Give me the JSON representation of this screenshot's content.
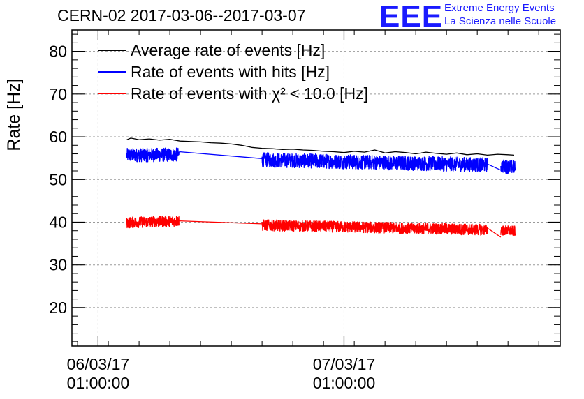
{
  "title": "CERN-02 2017-03-06--2017-03-07",
  "logo": {
    "mark": "EEE",
    "line1": "Extreme Energy Events",
    "line2": "La Scienza nelle Scuole",
    "color": "#1a1aff"
  },
  "chart_data": {
    "type": "line",
    "ylabel": "Rate [Hz]",
    "ylim": [
      11,
      85
    ],
    "yticks": [
      20,
      30,
      40,
      50,
      60,
      70,
      80
    ],
    "x_unit": "hours since 06/03/17 00:00",
    "xlim": [
      -1.55,
      46.1
    ],
    "xticks": [
      {
        "x": 1,
        "label": [
          "06/03/17",
          "01:00:00"
        ]
      },
      {
        "x": 25,
        "label": [
          "07/03/17",
          "01:00:00"
        ]
      }
    ],
    "grid": true,
    "legend_position": "top-left",
    "series": [
      {
        "name": "Average rate of events [Hz]",
        "color": "#000000",
        "segments": [
          {
            "x": [
              3.8,
              4.2,
              5.0,
              6.0,
              7.0,
              8.0,
              9.0,
              10.0,
              11.0,
              12.0,
              13.0,
              14.0,
              15.0,
              16.0,
              17.0,
              18.0,
              19.0,
              20.0,
              21.0,
              22.0,
              23.0,
              24.0,
              25.0
            ],
            "y": [
              59.3,
              59.7,
              59.3,
              59.5,
              59.2,
              59.4,
              59.0,
              58.9,
              58.8,
              58.6,
              58.5,
              58.3,
              58.0,
              57.5,
              57.3,
              57.2,
              57.0,
              57.1,
              56.9,
              56.8,
              56.6,
              56.5,
              56.3
            ]
          },
          {
            "x": [
              25.0,
              26.0,
              27.0,
              28.0,
              29.0,
              30.0,
              31.0,
              32.0,
              33.0,
              34.0,
              35.0,
              36.0,
              37.0,
              38.0,
              39.0,
              40.0,
              41.0,
              41.6
            ],
            "y": [
              56.3,
              56.6,
              56.4,
              56.9,
              56.2,
              56.5,
              56.3,
              56.0,
              56.4,
              56.1,
              55.9,
              56.2,
              55.8,
              56.0,
              55.7,
              55.9,
              55.8,
              55.7
            ]
          }
        ]
      },
      {
        "name": "Rate of events with hits [Hz]",
        "color": "#0000ff",
        "segments": [
          {
            "x": [
              3.8,
              8.9
            ],
            "y": [
              55.7,
              55.8
            ],
            "noise": 1.6
          },
          {
            "x": [
              8.9,
              17.0
            ],
            "y": [
              56.5,
              54.9
            ],
            "noise": 0
          },
          {
            "x": [
              17.0,
              39.0
            ],
            "y": [
              54.6,
              53.4
            ],
            "noise": 1.7
          },
          {
            "x": [
              39.0,
              40.3
            ],
            "y": [
              53.6,
              52.2
            ],
            "noise": 0
          },
          {
            "x": [
              40.3,
              41.7
            ],
            "y": [
              53.2,
              52.8
            ],
            "noise": 1.6
          }
        ]
      },
      {
        "name": "Rate of events with χ² < 10.0 [Hz]",
        "color": "#ff0000",
        "segments": [
          {
            "x": [
              3.8,
              8.9
            ],
            "y": [
              39.9,
              40.3
            ],
            "noise": 1.3
          },
          {
            "x": [
              8.9,
              17.0
            ],
            "y": [
              40.3,
              39.6
            ],
            "noise": 0
          },
          {
            "x": [
              17.0,
              39.0
            ],
            "y": [
              39.3,
              38.2
            ],
            "noise": 1.3
          },
          {
            "x": [
              39.0,
              40.3
            ],
            "y": [
              38.6,
              36.5
            ],
            "noise": 0
          },
          {
            "x": [
              40.3,
              41.7
            ],
            "y": [
              38.1,
              37.9
            ],
            "noise": 1.2
          }
        ]
      }
    ],
    "legend": {
      "entries": [
        "Average rate of events [Hz]",
        "Rate of events with hits [Hz]",
        "Rate of events with χ² < 10.0 [Hz]"
      ]
    }
  }
}
